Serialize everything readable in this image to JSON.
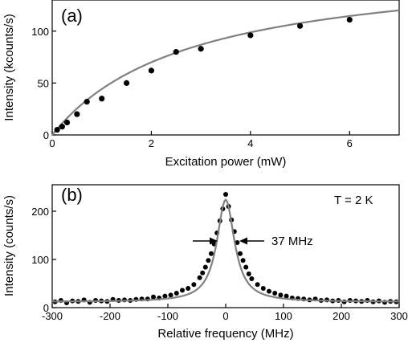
{
  "chart_data": [
    {
      "type": "scatter",
      "panel_label": "(a)",
      "xlabel": "Excitation power (mW)",
      "ylabel": "Intensity (kcounts/s)",
      "xlim": [
        0,
        7
      ],
      "ylim": [
        0,
        130
      ],
      "xticks": [
        0,
        2,
        4,
        6
      ],
      "yticks": [
        0,
        50,
        100
      ],
      "grid": false,
      "series": [
        {
          "kind": "points",
          "x": [
            0.1,
            0.2,
            0.3,
            0.5,
            0.7,
            1.0,
            1.5,
            2.0,
            2.5,
            3.0,
            4.0,
            5.0,
            6.0
          ],
          "y": [
            5,
            8,
            12,
            20,
            32,
            35,
            50,
            62,
            80,
            83,
            96,
            105,
            111
          ]
        },
        {
          "kind": "fit",
          "model": "saturation",
          "Imax": 168,
          "Psat": 2.8,
          "color": "#808080"
        }
      ]
    },
    {
      "type": "scatter",
      "panel_label": "(b)",
      "xlabel": "Relative frequency (MHz)",
      "ylabel": "Intensity (counts/s)",
      "xlim": [
        -300,
        300
      ],
      "ylim": [
        0,
        255
      ],
      "xticks": [
        -300,
        -200,
        -100,
        0,
        100,
        200,
        300
      ],
      "yticks": [
        0,
        100,
        200
      ],
      "grid": false,
      "annotations": {
        "temperature": "T = 2 K",
        "linewidth": "37 MHz"
      },
      "series": [
        {
          "kind": "points",
          "x": [
            -295,
            -285,
            -275,
            -265,
            -255,
            -245,
            -235,
            -225,
            -215,
            -205,
            -195,
            -185,
            -175,
            -165,
            -155,
            -145,
            -135,
            -125,
            -115,
            -105,
            -95,
            -85,
            -75,
            -65,
            -55,
            -45,
            -40,
            -35,
            -30,
            -25,
            -20,
            -15,
            -10,
            -5,
            0,
            5,
            10,
            15,
            20,
            25,
            30,
            35,
            40,
            45,
            55,
            65,
            75,
            85,
            95,
            105,
            115,
            125,
            135,
            145,
            155,
            165,
            175,
            185,
            195,
            205,
            215,
            225,
            235,
            245,
            255,
            265,
            275,
            285,
            295
          ],
          "y": [
            12,
            15,
            10,
            14,
            13,
            16,
            11,
            15,
            14,
            13,
            17,
            15,
            16,
            15,
            17,
            18,
            18,
            22,
            20,
            24,
            26,
            30,
            36,
            40,
            48,
            62,
            72,
            84,
            98,
            112,
            132,
            155,
            180,
            205,
            235,
            210,
            182,
            158,
            135,
            112,
            98,
            84,
            70,
            60,
            48,
            40,
            34,
            30,
            26,
            24,
            20,
            19,
            18,
            16,
            18,
            15,
            16,
            14,
            15,
            12,
            15,
            14,
            13,
            15,
            12,
            14,
            11,
            13,
            12
          ]
        },
        {
          "kind": "fit",
          "model": "lorentzian",
          "center": 0,
          "fwhm": 37,
          "amplitude": 212,
          "offset": 12,
          "color": "#808080"
        }
      ]
    }
  ]
}
